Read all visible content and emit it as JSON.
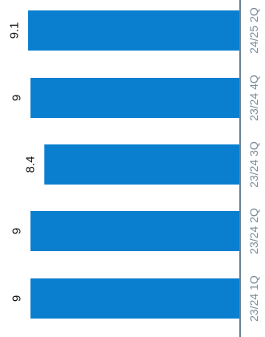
{
  "chart_data": {
    "type": "bar",
    "orientation": "horizontal-rotated",
    "categories": [
      "23/24 1Q",
      "23/24 2Q",
      "23/24 3Q",
      "23/24 4Q",
      "24/25 2Q"
    ],
    "values": [
      9,
      9,
      8.4,
      9,
      9.1
    ],
    "value_labels": [
      "9",
      "9",
      "8.4",
      "9",
      "9.1"
    ],
    "title": "",
    "xlabel": "",
    "ylabel": "",
    "grid": false,
    "legend": "none",
    "colors": {
      "bar": "#0a7fd0",
      "axis": "#6a7f8f",
      "tick_label": "#7a8a98",
      "value_label": "#111111"
    }
  }
}
